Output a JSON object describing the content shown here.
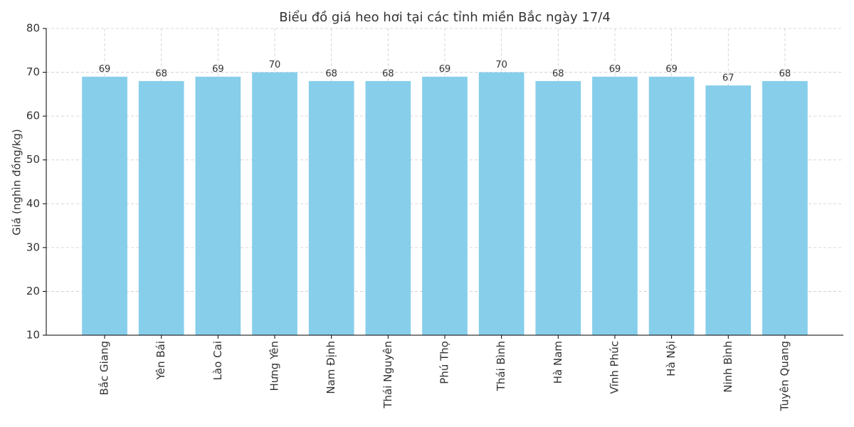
{
  "chart_data": {
    "type": "bar",
    "title": "Biểu đồ giá heo hơi tại các tỉnh miền Bắc ngày 17/4",
    "y_label": "Giá (nghìn đồng/kg)",
    "categories": [
      "Bắc Giang",
      "Yên Bái",
      "Lào Cai",
      "Hưng Yên",
      "Nam Định",
      "Thái Nguyên",
      "Phú Thọ",
      "Thái Bình",
      "Hà Nam",
      "Vĩnh Phúc",
      "Hà Nội",
      "Ninh Bình",
      "Tuyên Quang"
    ],
    "values": [
      69,
      68,
      69,
      70,
      68,
      68,
      69,
      70,
      68,
      69,
      69,
      67,
      68
    ],
    "color": "#87ceeb",
    "ylim": [
      10,
      80
    ],
    "yticks": [
      10,
      20,
      30,
      40,
      50,
      60,
      70,
      80
    ],
    "grid": true
  }
}
